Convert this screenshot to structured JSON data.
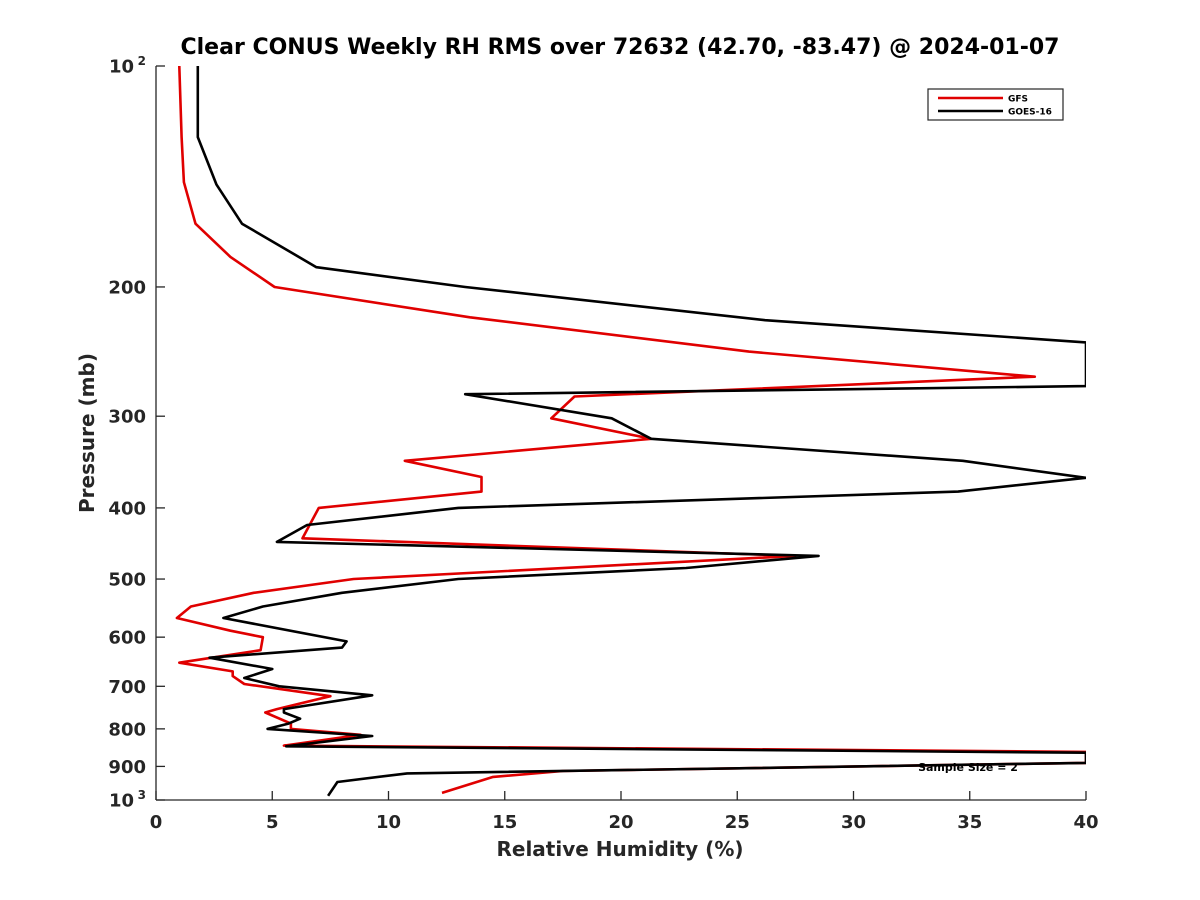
{
  "chart_data": {
    "type": "line",
    "title": "Clear CONUS Weekly RH RMS over 72632 (42.70, -83.47) @ 2024-01-07",
    "xlabel": "Relative Humidity (%)",
    "ylabel": "Pressure (mb)",
    "xlim": [
      0,
      40
    ],
    "ylim": [
      100,
      1000
    ],
    "y_scale": "log",
    "y_reversed": true,
    "x_ticks": [
      0,
      5,
      10,
      15,
      20,
      25,
      30,
      35,
      40
    ],
    "y_ticks": [
      {
        "value": 100,
        "label": "10",
        "sup": "2"
      },
      {
        "value": 200,
        "label": "200",
        "sup": ""
      },
      {
        "value": 300,
        "label": "300",
        "sup": ""
      },
      {
        "value": 400,
        "label": "400",
        "sup": ""
      },
      {
        "value": 500,
        "label": "500",
        "sup": ""
      },
      {
        "value": 600,
        "label": "600",
        "sup": ""
      },
      {
        "value": 700,
        "label": "700",
        "sup": ""
      },
      {
        "value": 800,
        "label": "800",
        "sup": ""
      },
      {
        "value": 900,
        "label": "900",
        "sup": ""
      },
      {
        "value": 1000,
        "label": "10",
        "sup": "3"
      }
    ],
    "legend_position": "top-right",
    "grid": false,
    "annotation": "Sample Size = 2",
    "series": [
      {
        "name": "GFS",
        "color": "#e00000",
        "points": [
          [
            1.0,
            100
          ],
          [
            1.1,
            125
          ],
          [
            1.2,
            144
          ],
          [
            1.7,
            164
          ],
          [
            3.2,
            182
          ],
          [
            5.1,
            200
          ],
          [
            13.5,
            220
          ],
          [
            25.5,
            245
          ],
          [
            37.8,
            265
          ],
          [
            18.0,
            282
          ],
          [
            17.0,
            302
          ],
          [
            21.3,
            322
          ],
          [
            10.7,
            345
          ],
          [
            14.0,
            363
          ],
          [
            14.0,
            380
          ],
          [
            7.0,
            400
          ],
          [
            6.3,
            440
          ],
          [
            27.5,
            465
          ],
          [
            8.5,
            500
          ],
          [
            4.2,
            522
          ],
          [
            1.5,
            545
          ],
          [
            0.9,
            565
          ],
          [
            3.2,
            588
          ],
          [
            4.6,
            600
          ],
          [
            4.5,
            625
          ],
          [
            1.0,
            650
          ],
          [
            3.3,
            668
          ],
          [
            3.3,
            678
          ],
          [
            3.8,
            695
          ],
          [
            7.5,
            722
          ],
          [
            5.2,
            752
          ],
          [
            4.7,
            760
          ],
          [
            5.8,
            787
          ],
          [
            5.8,
            800
          ],
          [
            8.8,
            815
          ],
          [
            5.5,
            843
          ],
          [
            40.0,
            860
          ],
          [
            40.0,
            890
          ],
          [
            17.5,
            913
          ],
          [
            14.5,
            930
          ],
          [
            12.3,
            978
          ]
        ]
      },
      {
        "name": "GOES-16",
        "color": "#000000",
        "points": [
          [
            1.8,
            100
          ],
          [
            1.8,
            125
          ],
          [
            2.6,
            145
          ],
          [
            3.7,
            164
          ],
          [
            6.9,
            188
          ],
          [
            13.3,
            200
          ],
          [
            26.2,
            222
          ],
          [
            40.0,
            238
          ],
          [
            40.0,
            273
          ],
          [
            13.3,
            280
          ],
          [
            19.6,
            302
          ],
          [
            21.3,
            322
          ],
          [
            34.7,
            345
          ],
          [
            40.0,
            364
          ],
          [
            34.5,
            380
          ],
          [
            13.0,
            400
          ],
          [
            6.5,
            422
          ],
          [
            5.2,
            445
          ],
          [
            28.5,
            465
          ],
          [
            22.8,
            483
          ],
          [
            13.0,
            500
          ],
          [
            8.0,
            522
          ],
          [
            4.6,
            545
          ],
          [
            2.9,
            565
          ],
          [
            8.2,
            608
          ],
          [
            8.0,
            620
          ],
          [
            2.3,
            640
          ],
          [
            5.0,
            663
          ],
          [
            3.8,
            682
          ],
          [
            5.3,
            700
          ],
          [
            9.3,
            720
          ],
          [
            5.5,
            752
          ],
          [
            5.5,
            760
          ],
          [
            6.2,
            775
          ],
          [
            5.7,
            787
          ],
          [
            4.8,
            800
          ],
          [
            9.3,
            818
          ],
          [
            5.6,
            845
          ],
          [
            40.0,
            862
          ],
          [
            40.0,
            890
          ],
          [
            10.8,
            920
          ],
          [
            7.8,
            945
          ],
          [
            7.4,
            987
          ]
        ]
      }
    ]
  }
}
